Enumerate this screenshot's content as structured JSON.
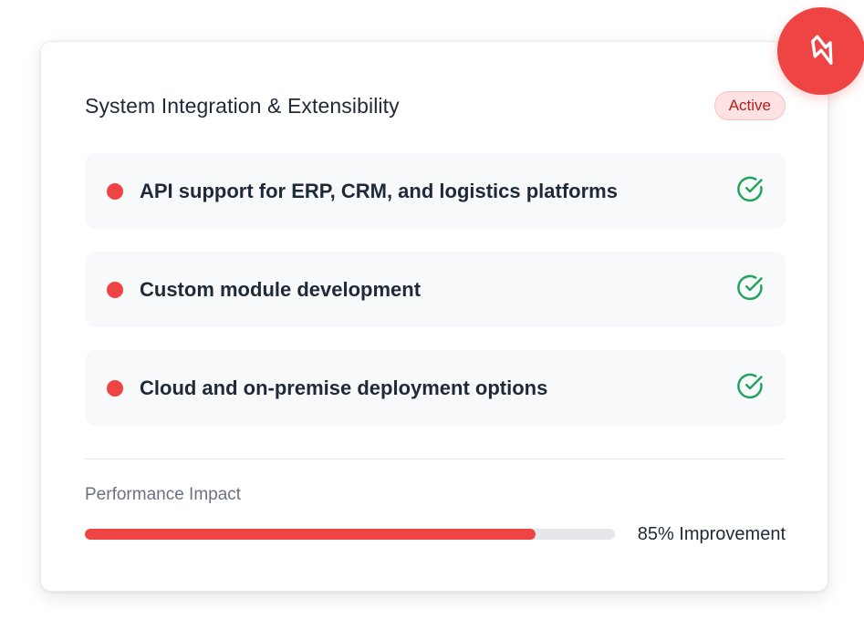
{
  "card": {
    "title": "System Integration & Extensibility",
    "status_badge": "Active",
    "features": [
      {
        "label": "API support for ERP, CRM, and logistics platforms",
        "checked": true
      },
      {
        "label": "Custom module development",
        "checked": true
      },
      {
        "label": "Cloud and on-premise deployment options",
        "checked": true
      }
    ],
    "performance": {
      "label": "Performance Impact",
      "value_text": "85% Improvement",
      "progress_fraction": 0.85
    }
  },
  "icons": {
    "fab": "lightning-icon",
    "feature_check": "check-circle-icon",
    "feature_bullet": "dot-icon"
  },
  "colors": {
    "accent": "#ef4444",
    "success": "#22a45d",
    "badge_bg": "#fde2e2",
    "badge_text": "#b91c1c",
    "track": "#e5e7eb"
  }
}
